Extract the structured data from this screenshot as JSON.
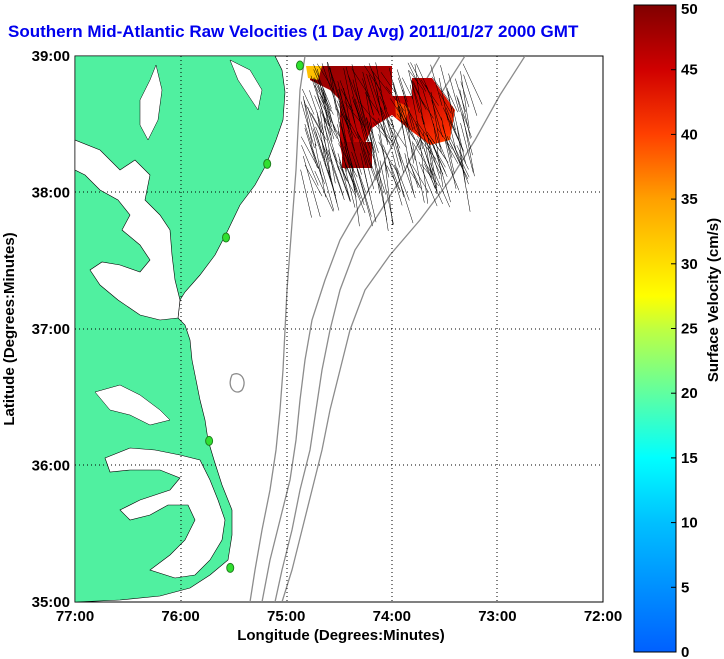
{
  "title": "Southern Mid-Atlantic Raw Velocities (1 Day Avg) 2011/01/27 2000 GMT",
  "map": {
    "xlabel": "Longitude (Degrees:Minutes)",
    "ylabel": "Latitude (Degrees:Minutes)",
    "x_ticks": [
      "77:00",
      "76:00",
      "75:00",
      "74:00",
      "73:00",
      "72:00"
    ],
    "y_ticks": [
      "39:00",
      "38:00",
      "37:00",
      "36:00",
      "35:00"
    ],
    "lon_range": [
      -77,
      -72
    ],
    "lat_range": [
      35,
      39
    ],
    "land_color": "#50f0a0",
    "grid": "dotted"
  },
  "colorbar": {
    "label": "Surface Velocity (cm/s)",
    "ticks": [
      "0",
      "5",
      "10",
      "15",
      "20",
      "25",
      "30",
      "35",
      "40",
      "45",
      "50"
    ],
    "range": [
      0,
      50
    ],
    "colormap": "jet"
  },
  "stations": [
    {
      "lon": -74.87,
      "lat": 38.93
    },
    {
      "lon": -75.18,
      "lat": 38.21
    },
    {
      "lon": -75.57,
      "lat": 37.67
    },
    {
      "lon": -75.73,
      "lat": 36.18
    },
    {
      "lon": -75.53,
      "lat": 35.25
    }
  ]
}
